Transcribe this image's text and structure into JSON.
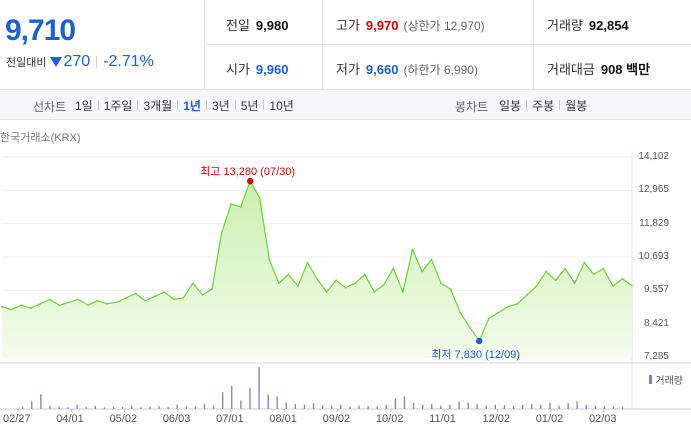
{
  "quote": {
    "current_price": "9,710",
    "change_label": "전일대비",
    "change_amount": "270",
    "change_rate": "-2.71%",
    "prev_close": {
      "label": "전일",
      "value": "9,980"
    },
    "high": {
      "label": "고가",
      "value": "9,970",
      "limit_label": "상한가",
      "limit_value": "12,970"
    },
    "volume": {
      "label": "거래량",
      "value": "92,854"
    },
    "open": {
      "label": "시가",
      "value": "9,960"
    },
    "low": {
      "label": "저가",
      "value": "9,660",
      "limit_label": "하한가",
      "limit_value": "6,990"
    },
    "trade_value": {
      "label": "거래대금",
      "value": "908 백만"
    }
  },
  "line_chart_tabs": {
    "label": "선차트",
    "items": [
      "1일",
      "1주일",
      "3개월",
      "1년",
      "3년",
      "5년",
      "10년"
    ],
    "active": "1년"
  },
  "candle_chart_tabs": {
    "label": "봉차트",
    "items": [
      "일봉",
      "주봉",
      "월봉"
    ]
  },
  "colors": {
    "up": "#d50000",
    "down": "#1e5fd1",
    "line": "#6fd13a",
    "fill": "#e6f7d9",
    "volume": "#8a78c0"
  },
  "chart_data": {
    "type": "area",
    "market_label": "한국거래소(KRX)",
    "x_ticks": [
      "02/27",
      "04/01",
      "05/02",
      "06/03",
      "07/01",
      "08/01",
      "09/02",
      "10/02",
      "11/01",
      "12/02",
      "01/02",
      "02/03"
    ],
    "y_ticks": [
      "14,102",
      "12,965",
      "11,829",
      "10,693",
      "9,557",
      "8,421",
      "7,285"
    ],
    "ylim": [
      7285,
      14102
    ],
    "high_annotation": "최고 13,280 (07/30)",
    "low_annotation": "최저 7,830 (12/09)",
    "high": {
      "date": "07/30",
      "value": 13280
    },
    "low": {
      "date": "12/09",
      "value": 7830
    },
    "price_series": [
      {
        "date": "02/27",
        "value": 9000
      },
      {
        "date": "03/06",
        "value": 8900
      },
      {
        "date": "03/13",
        "value": 9050
      },
      {
        "date": "03/20",
        "value": 8950
      },
      {
        "date": "03/27",
        "value": 9100
      },
      {
        "date": "04/01",
        "value": 9250
      },
      {
        "date": "04/08",
        "value": 9050
      },
      {
        "date": "04/15",
        "value": 9150
      },
      {
        "date": "04/22",
        "value": 9250
      },
      {
        "date": "04/29",
        "value": 9050
      },
      {
        "date": "05/02",
        "value": 9200
      },
      {
        "date": "05/09",
        "value": 9100
      },
      {
        "date": "05/16",
        "value": 9150
      },
      {
        "date": "05/23",
        "value": 9300
      },
      {
        "date": "05/30",
        "value": 9450
      },
      {
        "date": "06/03",
        "value": 9200
      },
      {
        "date": "06/10",
        "value": 9350
      },
      {
        "date": "06/17",
        "value": 9500
      },
      {
        "date": "06/24",
        "value": 9250
      },
      {
        "date": "07/01",
        "value": 9300
      },
      {
        "date": "07/08",
        "value": 9800
      },
      {
        "date": "07/15",
        "value": 9400
      },
      {
        "date": "07/18",
        "value": 9600
      },
      {
        "date": "07/22",
        "value": 11500
      },
      {
        "date": "07/25",
        "value": 12500
      },
      {
        "date": "07/28",
        "value": 12400
      },
      {
        "date": "07/30",
        "value": 13280
      },
      {
        "date": "08/01",
        "value": 12700
      },
      {
        "date": "08/04",
        "value": 10600
      },
      {
        "date": "08/08",
        "value": 9800
      },
      {
        "date": "08/14",
        "value": 10100
      },
      {
        "date": "08/21",
        "value": 9700
      },
      {
        "date": "08/28",
        "value": 10500
      },
      {
        "date": "09/02",
        "value": 9950
      },
      {
        "date": "09/09",
        "value": 9500
      },
      {
        "date": "09/16",
        "value": 9900
      },
      {
        "date": "09/23",
        "value": 9650
      },
      {
        "date": "10/02",
        "value": 9800
      },
      {
        "date": "10/09",
        "value": 10100
      },
      {
        "date": "10/16",
        "value": 9500
      },
      {
        "date": "10/23",
        "value": 9750
      },
      {
        "date": "11/01",
        "value": 10300
      },
      {
        "date": "11/05",
        "value": 9500
      },
      {
        "date": "11/08",
        "value": 10950
      },
      {
        "date": "11/12",
        "value": 10200
      },
      {
        "date": "11/15",
        "value": 10600
      },
      {
        "date": "11/20",
        "value": 9800
      },
      {
        "date": "11/25",
        "value": 9600
      },
      {
        "date": "12/02",
        "value": 8800
      },
      {
        "date": "12/05",
        "value": 8300
      },
      {
        "date": "12/09",
        "value": 7830
      },
      {
        "date": "12/12",
        "value": 8600
      },
      {
        "date": "12/18",
        "value": 8800
      },
      {
        "date": "12/24",
        "value": 9000
      },
      {
        "date": "01/02",
        "value": 9100
      },
      {
        "date": "01/09",
        "value": 9400
      },
      {
        "date": "01/16",
        "value": 9700
      },
      {
        "date": "01/23",
        "value": 10200
      },
      {
        "date": "01/28",
        "value": 9900
      },
      {
        "date": "02/03",
        "value": 10300
      },
      {
        "date": "02/06",
        "value": 9800
      },
      {
        "date": "02/10",
        "value": 10500
      },
      {
        "date": "02/14",
        "value": 10100
      },
      {
        "date": "02/18",
        "value": 10300
      },
      {
        "date": "02/21",
        "value": 9700
      },
      {
        "date": "02/24",
        "value": 9950
      },
      {
        "date": "02/27",
        "value": 9710
      }
    ],
    "volume_legend": "거래량",
    "volume_relative": [
      0.05,
      0.18,
      0.35,
      0.08,
      0.06,
      0.04,
      0.1,
      0.05,
      0.07,
      0.04,
      0.06,
      0.05,
      0.08,
      0.04,
      0.06,
      0.07,
      0.05,
      0.1,
      0.06,
      0.05,
      0.12,
      0.08,
      0.4,
      0.55,
      0.2,
      0.5,
      1.0,
      0.35,
      0.3,
      0.15,
      0.12,
      0.1,
      0.14,
      0.09,
      0.08,
      0.1,
      0.06,
      0.08,
      0.07,
      0.06,
      0.1,
      0.25,
      0.3,
      0.15,
      0.1,
      0.12,
      0.08,
      0.1,
      0.18,
      0.15,
      0.12,
      0.08,
      0.1,
      0.09,
      0.08,
      0.1,
      0.12,
      0.1,
      0.15,
      0.08,
      0.14,
      0.18,
      0.1,
      0.08,
      0.07,
      0.06,
      0.05
    ]
  }
}
